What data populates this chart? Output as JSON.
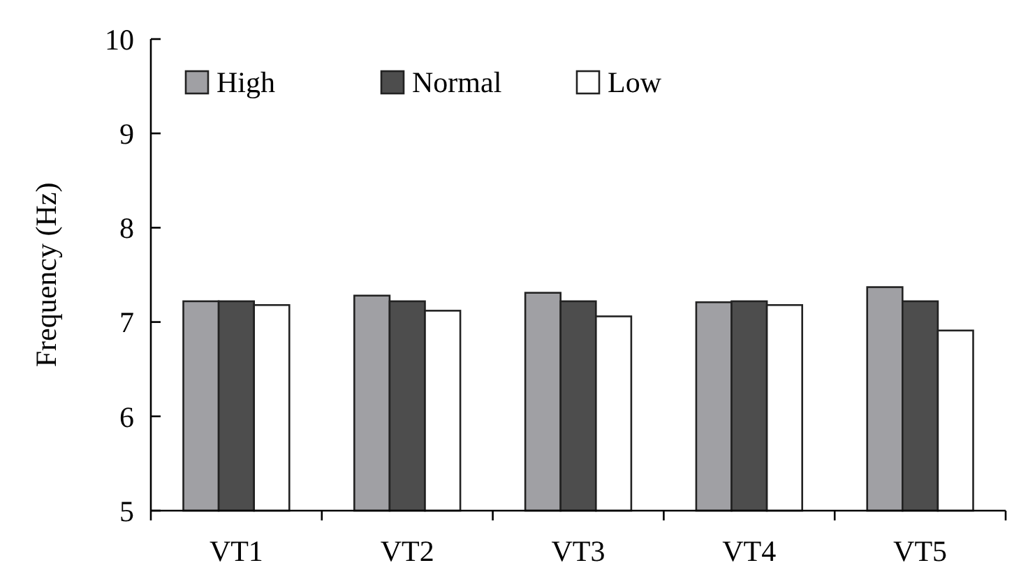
{
  "chart_data": {
    "type": "bar",
    "ylabel": "Frequency (Hz)",
    "categories": [
      "VT1",
      "VT2",
      "VT3",
      "VT4",
      "VT5"
    ],
    "series": [
      {
        "name": "High",
        "color": "#a0a0a4",
        "values": [
          7.22,
          7.28,
          7.31,
          7.21,
          7.37
        ]
      },
      {
        "name": "Normal",
        "color": "#4d4d4d",
        "values": [
          7.22,
          7.22,
          7.22,
          7.22,
          7.22
        ]
      },
      {
        "name": "Low",
        "color": "#ffffff",
        "values": [
          7.18,
          7.12,
          7.06,
          7.18,
          6.91
        ]
      }
    ],
    "ylim": [
      5,
      10
    ],
    "yticks": [
      5,
      6,
      7,
      8,
      9,
      10
    ],
    "grid": false,
    "legend": "top left"
  }
}
